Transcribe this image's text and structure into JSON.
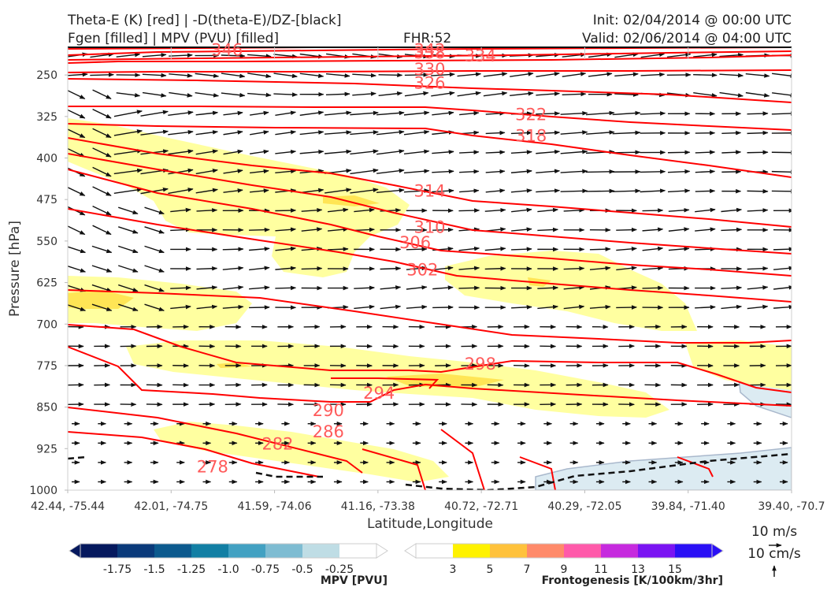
{
  "header": {
    "title_left_1": "Theta-E (K) [red] | -D(theta-E)/DZ-[black]",
    "title_left_2": "Fgen [filled] | MPV (PVU) [filled]",
    "fhr": "FHR:52",
    "init": "Init: 02/04/2014 @ 00:00 UTC",
    "valid": "Valid: 02/06/2014 @ 04:00 UTC"
  },
  "colors": {
    "theta_e": "#ff0000",
    "theta_e_label": "#ff5a5a",
    "vectors": "#111111",
    "fgen_light": "#ffffa0",
    "fgen_mid": "#ffe24d",
    "mpv_light": "#dcebf2"
  },
  "chart_data": {
    "type": "cross-section",
    "title": "Theta-E (K) [red] | -D(theta-E)/DZ-[black] / Fgen [filled] | MPV (PVU) [filled]",
    "xlabel": "Latitude,Longitude",
    "ylabel": "Pressure [hPa]",
    "x_tick_labels": [
      "42.44, -75.44",
      "42.01, -74.75",
      "41.59, -74.06",
      "41.16, -73.38",
      "40.72, -72.71",
      "40.29, -72.05",
      "39.84, -71.40",
      "39.40, -70.7"
    ],
    "y_ticks": [
      250,
      325,
      400,
      475,
      550,
      625,
      700,
      775,
      850,
      925,
      1000
    ],
    "ylim": [
      1000,
      200
    ],
    "contour_labels": [
      {
        "value": "346",
        "x": 0.22,
        "p": 205
      },
      {
        "value": "342",
        "x": 0.5,
        "p": 205
      },
      {
        "value": "338",
        "x": 0.5,
        "p": 210
      },
      {
        "value": "334",
        "x": 0.57,
        "p": 216
      },
      {
        "value": "330",
        "x": 0.5,
        "p": 240
      },
      {
        "value": "326",
        "x": 0.5,
        "p": 265
      },
      {
        "value": "322",
        "x": 0.64,
        "p": 322
      },
      {
        "value": "318",
        "x": 0.64,
        "p": 360
      },
      {
        "value": "314",
        "x": 0.5,
        "p": 460
      },
      {
        "value": "310",
        "x": 0.5,
        "p": 525
      },
      {
        "value": "306",
        "x": 0.48,
        "p": 553
      },
      {
        "value": "302",
        "x": 0.49,
        "p": 602
      },
      {
        "value": "298",
        "x": 0.57,
        "p": 772
      },
      {
        "value": "294",
        "x": 0.43,
        "p": 825
      },
      {
        "value": "290",
        "x": 0.36,
        "p": 856
      },
      {
        "value": "286",
        "x": 0.36,
        "p": 895
      },
      {
        "value": "282",
        "x": 0.29,
        "p": 917
      },
      {
        "value": "278",
        "x": 0.2,
        "p": 958
      }
    ],
    "mpv_colorbar": {
      "label": "MPV [PVU]",
      "ticks": [
        "-1.75",
        "-1.5",
        "-1.25",
        "-1.0",
        "-0.75",
        "-0.5",
        "-0.25"
      ],
      "colors": [
        "#06195e",
        "#0a3a7a",
        "#0c5a8e",
        "#127fa4",
        "#42a1c2",
        "#7ebcd2",
        "#bfdde5",
        "#ffffff"
      ]
    },
    "fgen_colorbar": {
      "label": "Frontogenesis [K/100km/3hr]",
      "ticks": [
        "3",
        "5",
        "7",
        "9",
        "11",
        "13",
        "15"
      ],
      "colors": [
        "#ffffff",
        "#fff200",
        "#ffc23c",
        "#ff8a6a",
        "#ff5aaa",
        "#c62ade",
        "#7a14f2",
        "#2a10f5"
      ]
    },
    "reference_vectors": {
      "horizontal": "10 m/s",
      "vertical": "10 cm/s"
    },
    "grid": false
  }
}
